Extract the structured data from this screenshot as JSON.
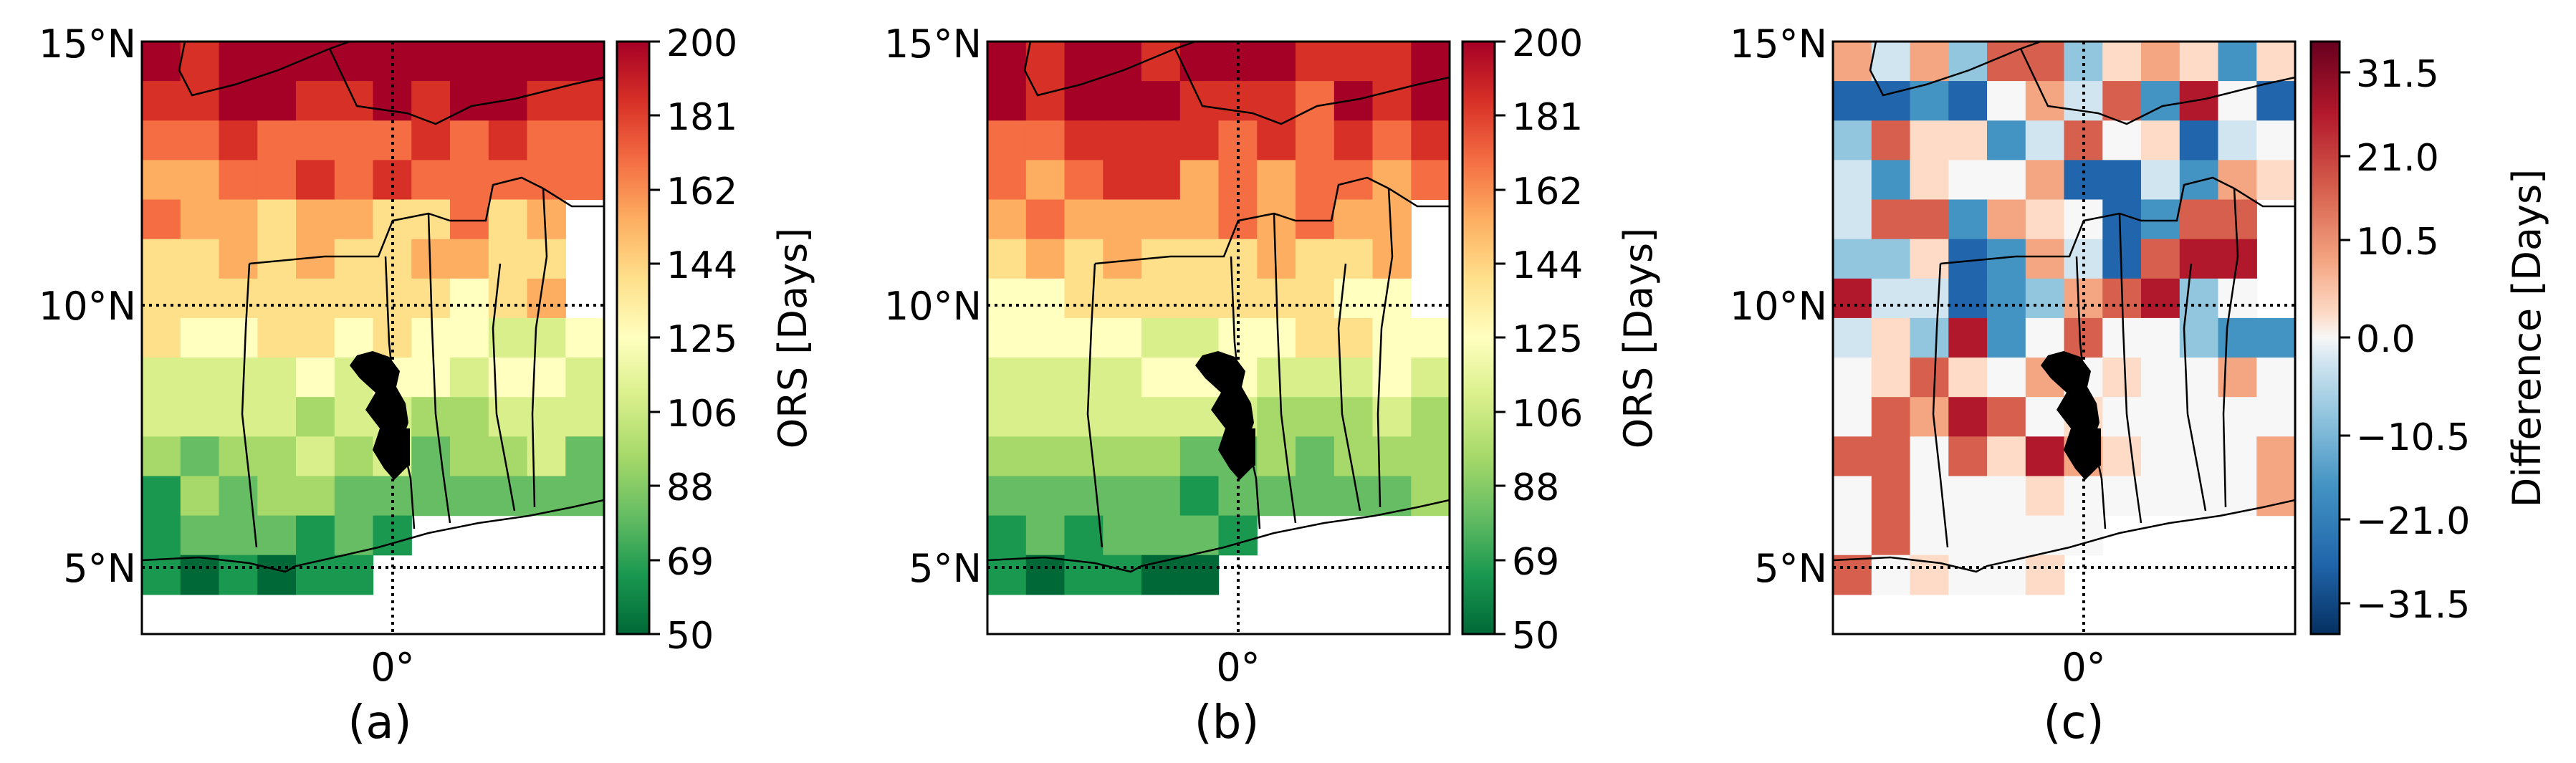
{
  "figure": {
    "panels": [
      {
        "id": "a",
        "caption": "(a)",
        "lat_ticks": [
          "15°N",
          "10°N",
          "5°N"
        ],
        "lon_ticks": [
          "0°"
        ],
        "colorbar": {
          "label": "ORS [Days]",
          "colormap": "RdYlGn_r",
          "min": 50,
          "max": 200,
          "tick_labels": [
            "200",
            "181",
            "162",
            "144",
            "125",
            "106",
            "88",
            "69",
            "50"
          ]
        }
      },
      {
        "id": "b",
        "caption": "(b)",
        "lat_ticks": [
          "15°N",
          "10°N",
          "5°N"
        ],
        "lon_ticks": [
          "0°"
        ],
        "colorbar": {
          "label": "ORS [Days]",
          "colormap": "RdYlGn_r",
          "min": 50,
          "max": 200,
          "tick_labels": [
            "200",
            "181",
            "162",
            "144",
            "125",
            "106",
            "88",
            "69",
            "50"
          ]
        }
      },
      {
        "id": "c",
        "caption": "(c)",
        "lat_ticks": [
          "15°N",
          "10°N",
          "5°N"
        ],
        "lon_ticks": [
          "0°"
        ],
        "colorbar": {
          "label": "Difference [Days]",
          "colormap": "RdBu_r",
          "min": -37,
          "max": 37,
          "tick_labels": [
            "31.5",
            "21.0",
            "10.5",
            "0.0",
            "−10.5",
            "−21.0",
            "−31.5"
          ]
        }
      }
    ],
    "colors": {
      "frame": "#000000",
      "land_water": "#000000",
      "no_data": "#ffffff"
    }
  }
}
